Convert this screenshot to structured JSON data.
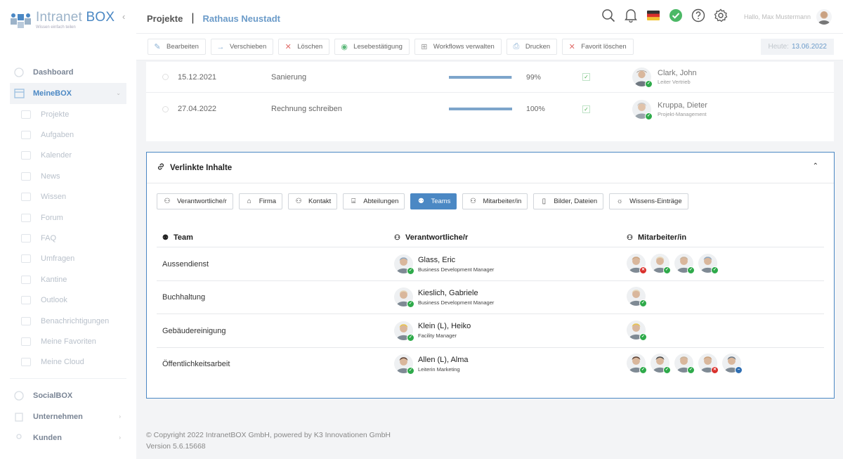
{
  "app": {
    "logo_name_a": "Intranet ",
    "logo_name_b": "BOX",
    "logo_tagline": "Wissen einfach teilen"
  },
  "sidebar": {
    "top_items": [
      {
        "label": "Dashboard"
      },
      {
        "label": "MeineBOX"
      }
    ],
    "sub_items": [
      {
        "label": "Projekte"
      },
      {
        "label": "Aufgaben"
      },
      {
        "label": "Kalender"
      },
      {
        "label": "News"
      },
      {
        "label": "Wissen"
      },
      {
        "label": "Forum"
      },
      {
        "label": "FAQ"
      },
      {
        "label": "Umfragen"
      },
      {
        "label": "Kantine"
      },
      {
        "label": "Outlook"
      },
      {
        "label": "Benachrichtigungen"
      },
      {
        "label": "Meine Favoriten"
      },
      {
        "label": "Meine Cloud"
      }
    ],
    "bottom_items": [
      {
        "label": "SocialBOX"
      },
      {
        "label": "Unternehmen"
      },
      {
        "label": "Kunden"
      }
    ]
  },
  "header": {
    "crumb_section": "Projekte",
    "crumb_separator": "|",
    "crumb_project": "Rathaus Neustadt",
    "greeting": "Hallo, Max Mustermann",
    "icons": [
      "search-icon",
      "bell-icon",
      "germany-flag-icon",
      "status-ok-icon",
      "help-icon",
      "gear-icon"
    ]
  },
  "toolbar": {
    "actions": [
      {
        "label": "Bearbeiten",
        "icon": "edit-icon"
      },
      {
        "label": "Verschieben",
        "icon": "arrow-right-icon"
      },
      {
        "label": "Löschen",
        "icon": "close-icon"
      },
      {
        "label": "Lesebestätigung",
        "icon": "eye-icon"
      },
      {
        "label": "Workflows verwalten",
        "icon": "workflow-icon"
      },
      {
        "label": "Drucken",
        "icon": "printer-icon"
      },
      {
        "label": "Favorit löschen",
        "icon": "close-icon"
      }
    ],
    "date_label": "Heute:",
    "date_value": "13.06.2022"
  },
  "tasks": [
    {
      "date": "15.12.2021",
      "name": "Sanierung",
      "progress": 0.99,
      "progress_label": "99%",
      "person": "Clark, John",
      "role": "Leiter Vertrieb"
    },
    {
      "date": "27.04.2022",
      "name": "Rechnung schreiben",
      "progress": 1.0,
      "progress_label": "100%",
      "person": "Kruppa, Dieter",
      "role": "Projekt-Management"
    }
  ],
  "linked": {
    "title": "Verlinkte Inhalte",
    "tabs": [
      {
        "label": "Verantwortliche/r",
        "icon": "person-icon"
      },
      {
        "label": "Firma",
        "icon": "home-icon"
      },
      {
        "label": "Kontakt",
        "icon": "person-icon"
      },
      {
        "label": "Abteilungen",
        "icon": "building-icon"
      },
      {
        "label": "Teams",
        "icon": "team-icon",
        "active": true
      },
      {
        "label": "Mitarbeiter/in",
        "icon": "person-icon"
      },
      {
        "label": "Bilder, Dateien",
        "icon": "file-icon"
      },
      {
        "label": "Wissens-Einträge",
        "icon": "lightbulb-icon"
      }
    ],
    "columns": {
      "team": "Team",
      "responsible": "Verantwortliche/r",
      "members": "Mitarbeiter/in"
    },
    "rows": [
      {
        "team": "Aussendienst",
        "resp_name": "Glass, Eric",
        "resp_role": "Business Development Manager",
        "resp_color": "#8fa7bf",
        "members": [
          {
            "color": "#c9a27e",
            "status": "no"
          },
          {
            "color": "#e6d6b8",
            "status": "ok"
          },
          {
            "color": "#c8b29a",
            "status": "ok"
          },
          {
            "color": "#8fa7bf",
            "status": "ok"
          }
        ]
      },
      {
        "team": "Buchhaltung",
        "resp_name": "Kieslich, Gabriele",
        "resp_role": "Business Development Manager",
        "resp_color": "#e6d6b8",
        "members": [
          {
            "color": "#e6d6b8",
            "status": "ok"
          }
        ]
      },
      {
        "team": "Gebäudereinigung",
        "resp_name": "Klein (L), Heiko",
        "resp_role": "Facility Manager",
        "resp_color": "#e8c44a",
        "members": [
          {
            "color": "#e8c44a",
            "status": "ok"
          }
        ]
      },
      {
        "team": "Öffentlichkeitsarbeit",
        "resp_name": "Allen (L), Alma",
        "resp_role": "Leiterin Marketing",
        "resp_color": "#5a3f33",
        "members": [
          {
            "color": "#5a3f33",
            "status": "ok"
          },
          {
            "color": "#4a4a4a",
            "status": "ok"
          },
          {
            "color": "#c8b29a",
            "status": "ok"
          },
          {
            "color": "#c9a27e",
            "status": "no"
          },
          {
            "color": "#6d7a88",
            "status": "away"
          }
        ]
      }
    ]
  },
  "footer": {
    "copyright": "© Copyright 2022 IntranetBOX GmbH, powered by K3 Innovationen GmbH",
    "version": "Version 5.6.15668"
  }
}
